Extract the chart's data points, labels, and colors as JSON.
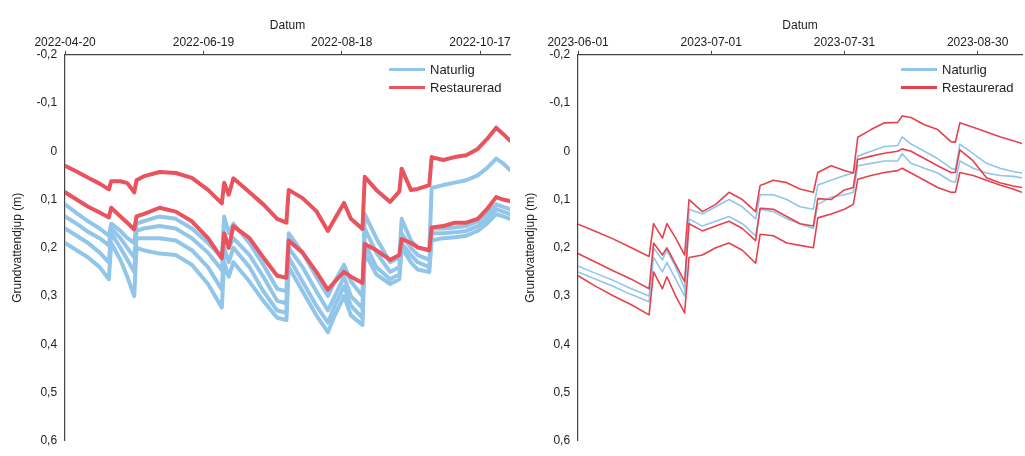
{
  "chart_data": [
    {
      "type": "line",
      "xlabel": "Datum",
      "ylabel": "Grundvattendjup (m)",
      "legend": "top right",
      "grid": false,
      "x": [
        "2022-04-20",
        "2022-04-25",
        "2022-04-30",
        "2022-05-05",
        "2022-05-09",
        "2022-05-10",
        "2022-05-14",
        "2022-05-17",
        "2022-05-20",
        "2022-05-21",
        "2022-05-24",
        "2022-05-31",
        "2022-06-07",
        "2022-06-14",
        "2022-06-21",
        "2022-06-27",
        "2022-06-28",
        "2022-06-30",
        "2022-07-02",
        "2022-07-09",
        "2022-07-15",
        "2022-07-21",
        "2022-07-25",
        "2022-07-26",
        "2022-08-01",
        "2022-08-07",
        "2022-08-12",
        "2022-08-15",
        "2022-08-19",
        "2022-08-22",
        "2022-08-27",
        "2022-08-28",
        "2022-09-02",
        "2022-09-08",
        "2022-09-12",
        "2022-09-13",
        "2022-09-17",
        "2022-09-20",
        "2022-09-25",
        "2022-09-26",
        "2022-10-01",
        "2022-10-06",
        "2022-10-11",
        "2022-10-16",
        "2022-10-20",
        "2022-10-24",
        "2022-10-27",
        "2022-10-30"
      ],
      "series": [
        {
          "name": "Naturlig",
          "color": "#92c5ea",
          "values": [
            0.11,
            0.128,
            0.145,
            0.16,
            0.175,
            0.15,
            0.165,
            0.18,
            0.19,
            0.15,
            0.145,
            0.135,
            0.14,
            0.16,
            0.19,
            0.22,
            0.135,
            0.17,
            0.15,
            0.19,
            0.235,
            0.285,
            0.29,
            0.17,
            0.21,
            0.26,
            0.3,
            0.27,
            0.235,
            0.27,
            0.3,
            0.13,
            0.18,
            0.23,
            0.22,
            0.14,
            0.185,
            0.2,
            0.205,
            0.076,
            0.07,
            0.065,
            0.06,
            0.05,
            0.035,
            0.015,
            0.025,
            0.039
          ]
        },
        {
          "color": "#92c5ea",
          "values": [
            0.135,
            0.15,
            0.167,
            0.18,
            0.195,
            0.16,
            0.18,
            0.2,
            0.22,
            0.165,
            0.16,
            0.155,
            0.16,
            0.18,
            0.21,
            0.246,
            0.17,
            0.2,
            0.18,
            0.215,
            0.26,
            0.31,
            0.315,
            0.2,
            0.24,
            0.29,
            0.33,
            0.3,
            0.26,
            0.3,
            0.325,
            0.16,
            0.21,
            0.25,
            0.24,
            0.17,
            0.2,
            0.215,
            0.225,
            0.16,
            0.16,
            0.158,
            0.155,
            0.145,
            0.13,
            0.11,
            0.115,
            0.12
          ]
        },
        {
          "color": "#92c5ea",
          "values": [
            0.16,
            0.175,
            0.19,
            0.21,
            0.23,
            0.17,
            0.2,
            0.225,
            0.25,
            0.18,
            0.18,
            0.18,
            0.185,
            0.205,
            0.24,
            0.287,
            0.2,
            0.23,
            0.2,
            0.24,
            0.29,
            0.33,
            0.335,
            0.22,
            0.27,
            0.32,
            0.355,
            0.32,
            0.28,
            0.32,
            0.345,
            0.19,
            0.24,
            0.265,
            0.255,
            0.19,
            0.215,
            0.23,
            0.24,
            0.17,
            0.17,
            0.168,
            0.165,
            0.155,
            0.14,
            0.12,
            0.125,
            0.13
          ]
        },
        {
          "color": "#92c5ea",
          "values": [
            0.19,
            0.205,
            0.22,
            0.24,
            0.265,
            0.19,
            0.225,
            0.26,
            0.3,
            0.2,
            0.205,
            0.212,
            0.215,
            0.235,
            0.275,
            0.324,
            0.23,
            0.26,
            0.23,
            0.27,
            0.31,
            0.345,
            0.35,
            0.24,
            0.29,
            0.34,
            0.375,
            0.34,
            0.3,
            0.34,
            0.36,
            0.21,
            0.255,
            0.275,
            0.265,
            0.2,
            0.23,
            0.245,
            0.25,
            0.185,
            0.18,
            0.178,
            0.175,
            0.165,
            0.15,
            0.13,
            0.135,
            0.14
          ]
        },
        {
          "name": "Restaurerad",
          "color": "#e8535e",
          "values": [
            0.03,
            0.042,
            0.055,
            0.067,
            0.079,
            0.062,
            0.062,
            0.066,
            0.085,
            0.06,
            0.052,
            0.043,
            0.045,
            0.055,
            0.08,
            0.108,
            0.065,
            0.09,
            0.056,
            0.085,
            0.11,
            0.14,
            0.148,
            0.08,
            0.097,
            0.124,
            0.165,
            0.14,
            0.107,
            0.14,
            0.161,
            0.053,
            0.08,
            0.105,
            0.083,
            0.036,
            0.08,
            0.078,
            0.07,
            0.012,
            0.018,
            0.012,
            0.008,
            -0.005,
            -0.025,
            -0.049,
            -0.036,
            -0.022
          ]
        },
        {
          "color": "#e8535e",
          "values": [
            0.085,
            0.1,
            0.115,
            0.127,
            0.137,
            0.117,
            0.135,
            0.148,
            0.162,
            0.135,
            0.13,
            0.117,
            0.125,
            0.145,
            0.18,
            0.222,
            0.17,
            0.2,
            0.155,
            0.18,
            0.22,
            0.258,
            0.262,
            0.185,
            0.21,
            0.25,
            0.287,
            0.27,
            0.25,
            0.26,
            0.273,
            0.192,
            0.205,
            0.225,
            0.215,
            0.182,
            0.19,
            0.199,
            0.205,
            0.158,
            0.155,
            0.148,
            0.148,
            0.14,
            0.12,
            0.095,
            0.1,
            0.103
          ]
        }
      ],
      "xlim": [
        "2022-04-20",
        "2022-10-30"
      ],
      "xticks": [
        "2022-04-20",
        "2022-06-19",
        "2022-08-18",
        "2022-10-17"
      ],
      "ylim": [
        0.6,
        -0.2
      ],
      "yticks": [
        {
          "value": -0.2,
          "label": "-0,2"
        },
        {
          "value": -0.1,
          "label": "-0,1"
        },
        0,
        {
          "value": 0.1,
          "label": "0,1"
        },
        {
          "value": 0.2,
          "label": "0,2"
        },
        {
          "value": 0.3,
          "label": "0,3"
        },
        {
          "value": 0.4,
          "label": "0,4"
        },
        {
          "value": 0.5,
          "label": "0,5"
        },
        {
          "value": 0.6,
          "label": "0,6"
        }
      ]
    },
    {
      "type": "line",
      "xlabel": "Datum",
      "ylabel": "Grundvattendjup (m)",
      "legend": "top right",
      "grid": false,
      "x": [
        "2023-06-01",
        "2023-06-05",
        "2023-06-09",
        "2023-06-13",
        "2023-06-17",
        "2023-06-18",
        "2023-06-20",
        "2023-06-21",
        "2023-06-23",
        "2023-06-25",
        "2023-06-26",
        "2023-06-29",
        "2023-07-02",
        "2023-07-05",
        "2023-07-08",
        "2023-07-11",
        "2023-07-12",
        "2023-07-15",
        "2023-07-18",
        "2023-07-21",
        "2023-07-24",
        "2023-07-25",
        "2023-07-28",
        "2023-07-31",
        "2023-08-02",
        "2023-08-03",
        "2023-08-06",
        "2023-08-09",
        "2023-08-12",
        "2023-08-13",
        "2023-08-15",
        "2023-08-18",
        "2023-08-21",
        "2023-08-24",
        "2023-08-25",
        "2023-08-26",
        "2023-08-29",
        "2023-09-01",
        "2023-09-04",
        "2023-09-07",
        "2023-09-09"
      ],
      "series": [
        {
          "name": "Naturlig",
          "color": "#92c5ea",
          "values": [
            0.238,
            0.253,
            0.268,
            0.285,
            0.3,
            0.2,
            0.225,
            0.205,
            0.24,
            0.285,
            0.12,
            0.13,
            0.115,
            0.1,
            0.115,
            0.14,
            0.09,
            0.09,
            0.1,
            0.115,
            0.12,
            0.07,
            0.06,
            0.05,
            0.045,
            0.01,
            0.0,
            -0.01,
            -0.012,
            -0.03,
            -0.015,
            0.0,
            0.015,
            0.035,
            0.038,
            -0.015,
            0.005,
            0.025,
            0.035,
            0.042,
            0.045
          ]
        },
        {
          "color": "#92c5ea",
          "values": [
            0.25,
            0.265,
            0.28,
            0.297,
            0.312,
            0.22,
            0.25,
            0.23,
            0.265,
            0.3,
            0.14,
            0.155,
            0.145,
            0.135,
            0.15,
            0.175,
            0.12,
            0.125,
            0.14,
            0.15,
            0.16,
            0.11,
            0.095,
            0.09,
            0.085,
            0.03,
            0.025,
            0.02,
            0.02,
            0.005,
            0.025,
            0.035,
            0.045,
            0.062,
            0.064,
            0.02,
            0.035,
            0.045,
            0.05,
            0.052,
            0.055
          ]
        },
        {
          "name": "Restaurerad",
          "color": "#e6424e",
          "values": [
            0.151,
            0.166,
            0.182,
            0.2,
            0.218,
            0.15,
            0.18,
            0.15,
            0.18,
            0.215,
            0.1,
            0.125,
            0.11,
            0.085,
            0.1,
            0.125,
            0.071,
            0.06,
            0.065,
            0.078,
            0.085,
            0.044,
            0.03,
            0.04,
            0.045,
            -0.029,
            -0.045,
            -0.059,
            -0.06,
            -0.073,
            -0.07,
            -0.055,
            -0.045,
            -0.02,
            -0.019,
            -0.059,
            -0.05,
            -0.04,
            -0.03,
            -0.022,
            -0.016
          ]
        },
        {
          "color": "#e6424e",
          "values": [
            0.212,
            0.23,
            0.248,
            0.265,
            0.285,
            0.19,
            0.215,
            0.2,
            0.235,
            0.27,
            0.15,
            0.165,
            0.155,
            0.145,
            0.16,
            0.185,
            0.118,
            0.12,
            0.135,
            0.15,
            0.155,
            0.098,
            0.1,
            0.08,
            0.075,
            0.017,
            0.01,
            0.004,
            0.0,
            -0.005,
            0.0,
            0.015,
            0.03,
            0.044,
            0.044,
            -0.003,
            0.02,
            0.055,
            0.065,
            0.072,
            0.075
          ]
        },
        {
          "color": "#e6424e",
          "values": [
            0.258,
            0.28,
            0.3,
            0.318,
            0.339,
            0.25,
            0.285,
            0.26,
            0.3,
            0.335,
            0.22,
            0.215,
            0.2,
            0.19,
            0.205,
            0.232,
            0.172,
            0.175,
            0.19,
            0.195,
            0.2,
            0.138,
            0.13,
            0.12,
            0.11,
            0.058,
            0.05,
            0.044,
            0.04,
            0.035,
            0.045,
            0.06,
            0.075,
            0.085,
            0.085,
            0.044,
            0.05,
            0.06,
            0.07,
            0.078,
            0.085
          ]
        }
      ],
      "xlim": [
        "2023-06-01",
        "2023-09-09"
      ],
      "xticks": [
        "2023-06-01",
        "2023-07-01",
        "2023-07-31",
        "2023-08-30"
      ],
      "ylim": [
        0.6,
        -0.2
      ],
      "yticks": [
        {
          "value": -0.2,
          "label": "-0,2"
        },
        {
          "value": -0.1,
          "label": "-0,1"
        },
        0,
        {
          "value": 0.1,
          "label": "0,1"
        },
        {
          "value": 0.2,
          "label": "0,2"
        },
        {
          "value": 0.3,
          "label": "0,3"
        },
        {
          "value": 0.4,
          "label": "0,4"
        },
        {
          "value": 0.5,
          "label": "0,5"
        },
        {
          "value": 0.6,
          "label": "0,6"
        }
      ]
    }
  ]
}
